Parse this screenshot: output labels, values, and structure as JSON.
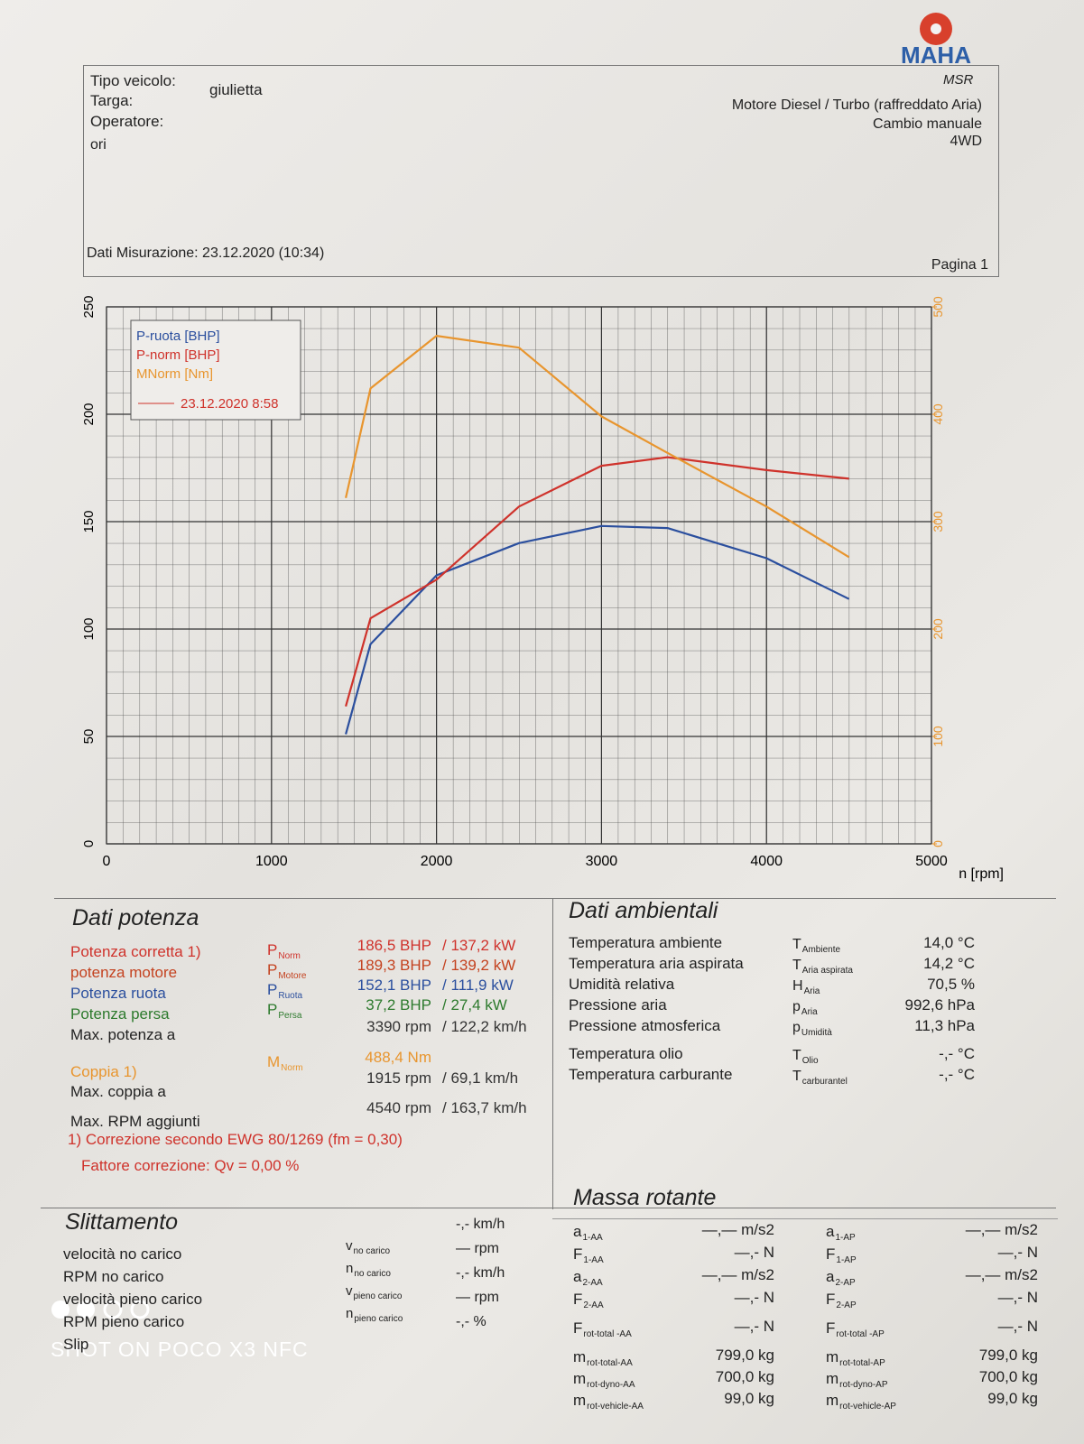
{
  "header": {
    "logo": "MAHA",
    "product": "MSR",
    "vehicle_label": "Tipo veicolo:",
    "vehicle": "giulietta",
    "plate_label": "Targa:",
    "operator_label": "Operatore:",
    "note": "ori",
    "engine": "Motore Diesel / Turbo (raffreddato Aria)",
    "gearbox": "Cambio manuale",
    "drive": "4WD",
    "measurement": "Dati Misurazione: 23.12.2020 (10:34)",
    "page": "Pagina 1"
  },
  "chart_data": {
    "type": "line",
    "x_label": "n [rpm]",
    "legend_note": "23.12.2020 8:58",
    "x": [
      1450,
      1600,
      2000,
      2500,
      3000,
      3400,
      4000,
      4500
    ],
    "series": [
      {
        "name": "P-ruota [BHP]",
        "color": "#2b4f9e",
        "values": [
          51,
          93,
          125,
          140,
          148,
          147,
          133,
          114
        ]
      },
      {
        "name": "P-norm [BHP]",
        "color": "#cf322b",
        "values": [
          64,
          105,
          123,
          157,
          176,
          180,
          174,
          170
        ]
      },
      {
        "name": "MNorm [Nm]",
        "color": "#e8952e",
        "axis": "y2",
        "values": [
          322,
          424,
          473,
          462,
          398,
          364,
          314,
          267
        ]
      }
    ],
    "xlim": [
      0,
      5000
    ],
    "xticks": [
      0,
      1000,
      2000,
      3000,
      4000,
      5000
    ],
    "ylim": [
      0,
      250
    ],
    "yticks": [
      0,
      50,
      100,
      150,
      200,
      250
    ],
    "y2lim": [
      0,
      500
    ],
    "y2ticks": [
      0,
      100,
      200,
      300,
      400,
      500
    ],
    "grid": true
  },
  "power": {
    "title": "Dati potenza",
    "rows": [
      {
        "label": "Potenza corretta 1)",
        "color": "#cf322b",
        "symbol": {
          "main": "P",
          "sub": "Norm"
        },
        "value": "186,5 BHP",
        "value2": "/ 137,2 kW"
      },
      {
        "label": "potenza motore",
        "color": "#c4421f",
        "symbol": {
          "main": "P",
          "sub": "Motore"
        },
        "value": "189,3 BHP",
        "value2": "/ 139,2 kW"
      },
      {
        "label": "Potenza ruota",
        "color": "#2b4f9e",
        "symbol": {
          "main": "P",
          "sub": "Ruota"
        },
        "value": "152,1 BHP",
        "value2": "/ 111,9 kW"
      },
      {
        "label": "Potenza persa",
        "color": "#2d7a2d",
        "symbol": {
          "main": "P",
          "sub": "Persa"
        },
        "value": "37,2 BHP",
        "value2": "/ 27,4 kW"
      },
      {
        "label": "Max. potenza a",
        "color": "#222",
        "value": "3390 rpm",
        "value2": "/ 122,2 km/h"
      },
      {
        "label": "Coppia 1)",
        "color": "#e8952e",
        "symbol": {
          "main": "M",
          "sub": "Norm"
        },
        "value": "488,4 Nm"
      },
      {
        "label": "Max. coppia a",
        "color": "#222",
        "value": "1915 rpm",
        "value2": "/ 69,1 km/h"
      },
      {
        "label": "Max. RPM aggiunti",
        "color": "#222",
        "value": "4540 rpm",
        "value2": "/ 163,7 km/h"
      }
    ],
    "footnote1": "1) Correzione secondo EWG 80/1269 (fm = 0,30)",
    "footnote2": "Fattore correzione: Qv = 0,00 %"
  },
  "ambient": {
    "title": "Dati ambientali",
    "rows": [
      {
        "label": "Temperatura ambiente",
        "symbol": {
          "main": "T",
          "sub": "Ambiente"
        },
        "value": "14,0 °C"
      },
      {
        "label": "Temperatura aria aspirata",
        "symbol": {
          "main": "T",
          "sub": "Aria aspirata"
        },
        "value": "14,2 °C"
      },
      {
        "label": "Umidità relativa",
        "symbol": {
          "main": "H",
          "sub": "Aria"
        },
        "value": "70,5 %"
      },
      {
        "label": "Pressione aria",
        "symbol": {
          "main": "p",
          "sub": "Aria"
        },
        "value": "992,6 hPa"
      },
      {
        "label": "Pressione atmosferica",
        "symbol": {
          "main": "p",
          "sub": "Umidità"
        },
        "value": "11,3 hPa"
      },
      {
        "label": "Temperatura olio",
        "symbol": {
          "main": "T",
          "sub": "Olio"
        },
        "value": "-,- °C"
      },
      {
        "label": "Temperatura carburante",
        "symbol": {
          "main": "T",
          "sub": "carburantel"
        },
        "value": "-,- °C"
      }
    ]
  },
  "slip": {
    "title": "Slittamento",
    "rows": [
      {
        "label": "velocità no carico",
        "symbol": {
          "main": "v",
          "sub": "no carico"
        },
        "value": "-,- km/h"
      },
      {
        "label": "RPM no carico",
        "symbol": {
          "main": "n",
          "sub": "no carico"
        },
        "value": "— rpm"
      },
      {
        "label": "velocità pieno carico",
        "symbol": {
          "main": "v",
          "sub": "pieno carico"
        },
        "value": "-,- km/h"
      },
      {
        "label": "RPM pieno carico",
        "symbol": {
          "main": "n",
          "sub": "pieno carico"
        },
        "value": "— rpm"
      },
      {
        "label": "Slip",
        "value": "-,- %"
      }
    ]
  },
  "rotating_mass": {
    "title": "Massa rotante",
    "rows": [
      {
        "symbol": {
          "main": "a",
          "sub": "1-AA"
        },
        "value": "—,— m/s2",
        "symbol2": {
          "main": "a",
          "sub": "1-AP"
        },
        "value2": "—,— m/s2"
      },
      {
        "symbol": {
          "main": "F",
          "sub": "1-AA"
        },
        "value": "—,- N",
        "symbol2": {
          "main": "F",
          "sub": "1-AP"
        },
        "value2": "—,- N"
      },
      {
        "symbol": {
          "main": "a",
          "sub": "2-AA"
        },
        "value": "—,— m/s2",
        "symbol2": {
          "main": "a",
          "sub": "2-AP"
        },
        "value2": "—,— m/s2"
      },
      {
        "symbol": {
          "main": "F",
          "sub": "2-AA"
        },
        "value": "—,- N",
        "symbol2": {
          "main": "F",
          "sub": "2-AP"
        },
        "value2": "—,- N"
      },
      {
        "symbol": {
          "main": "F",
          "sub": "rot-total -AA"
        },
        "value": "—,- N",
        "symbol2": {
          "main": "F",
          "sub": "rot-total -AP"
        },
        "value2": "—,- N"
      },
      {
        "symbol": {
          "main": "m",
          "sub": "rot-total-AA"
        },
        "value": "799,0 kg",
        "symbol2": {
          "main": "m",
          "sub": "rot-total-AP"
        },
        "value2": "799,0 kg"
      },
      {
        "symbol": {
          "main": "m",
          "sub": "rot-dyno-AA"
        },
        "value": "700,0 kg",
        "symbol2": {
          "main": "m",
          "sub": "rot-dyno-AP"
        },
        "value2": "700,0 kg"
      },
      {
        "symbol": {
          "main": "m",
          "sub": "rot-vehicle-AA"
        },
        "value": "99,0 kg",
        "symbol2": {
          "main": "m",
          "sub": "rot-vehicle-AP"
        },
        "value2": "99,0 kg"
      }
    ]
  },
  "watermark": "SHOT ON POCO X3 NFC"
}
